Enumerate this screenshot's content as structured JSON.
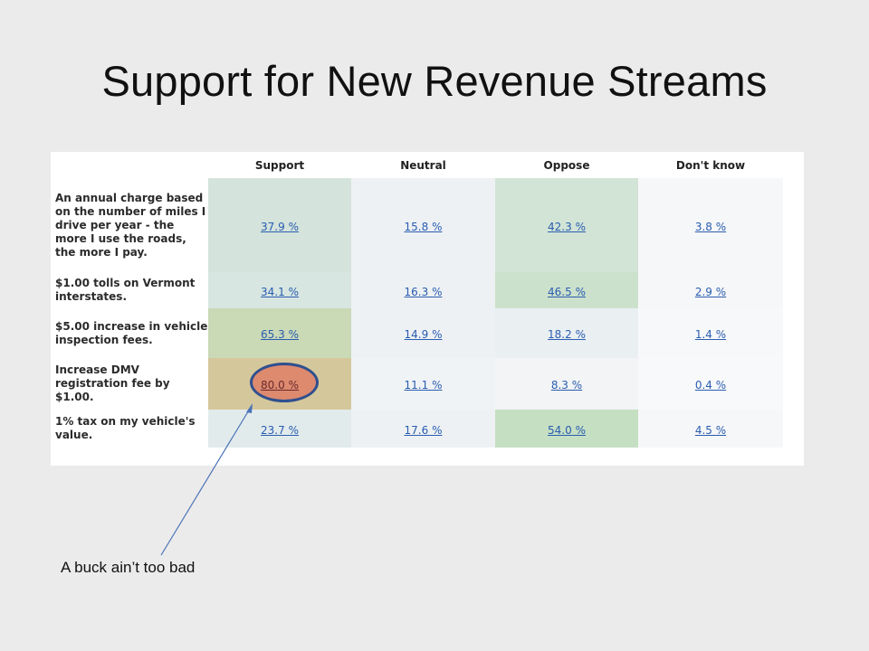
{
  "slide": {
    "title": "Support for New Revenue Streams",
    "annotation": "A buck ain’t too bad"
  },
  "table": {
    "columns": [
      "Support",
      "Neutral",
      "Oppose",
      "Don't know"
    ],
    "rows": [
      {
        "label": "An annual charge based on the number of miles I drive per year - the more I use the roads, the more I pay.",
        "cells": [
          "37.9 %",
          "15.8 %",
          "42.3 %",
          "3.8 %"
        ],
        "colors": [
          "#d4e4dc",
          "#eef1f4",
          "#d1e4d6",
          "#f6f7f8"
        ]
      },
      {
        "label": "$1.00 tolls on Vermont interstates.",
        "cells": [
          "34.1 %",
          "16.3 %",
          "46.5 %",
          "2.9 %"
        ],
        "colors": [
          "#d7e6e1",
          "#eef1f4",
          "#cce1cc",
          "#f6f7f8"
        ]
      },
      {
        "label": "$5.00 increase in vehicle inspection fees.",
        "cells": [
          "65.3 %",
          "14.9 %",
          "18.2 %",
          "1.4 %"
        ],
        "colors": [
          "#cad9b6",
          "#eef1f4",
          "#eaeff2",
          "#f7f8f9"
        ]
      },
      {
        "label": "Increase DMV registration fee by $1.00.",
        "cells": [
          "80.0 %",
          "11.1 %",
          "8.3 %",
          "0.4 %"
        ],
        "colors": [
          "#d4c79b",
          "#f0f3f5",
          "#f2f4f6",
          "#f8f9fa"
        ]
      },
      {
        "label": "1% tax on my vehicle's value.",
        "cells": [
          "23.7 %",
          "17.6 %",
          "54.0 %",
          "4.5 %"
        ],
        "colors": [
          "#e2ebec",
          "#eef1f4",
          "#c5dfc3",
          "#f6f7f8"
        ]
      }
    ],
    "highlighted_cell": "80.0 %"
  }
}
